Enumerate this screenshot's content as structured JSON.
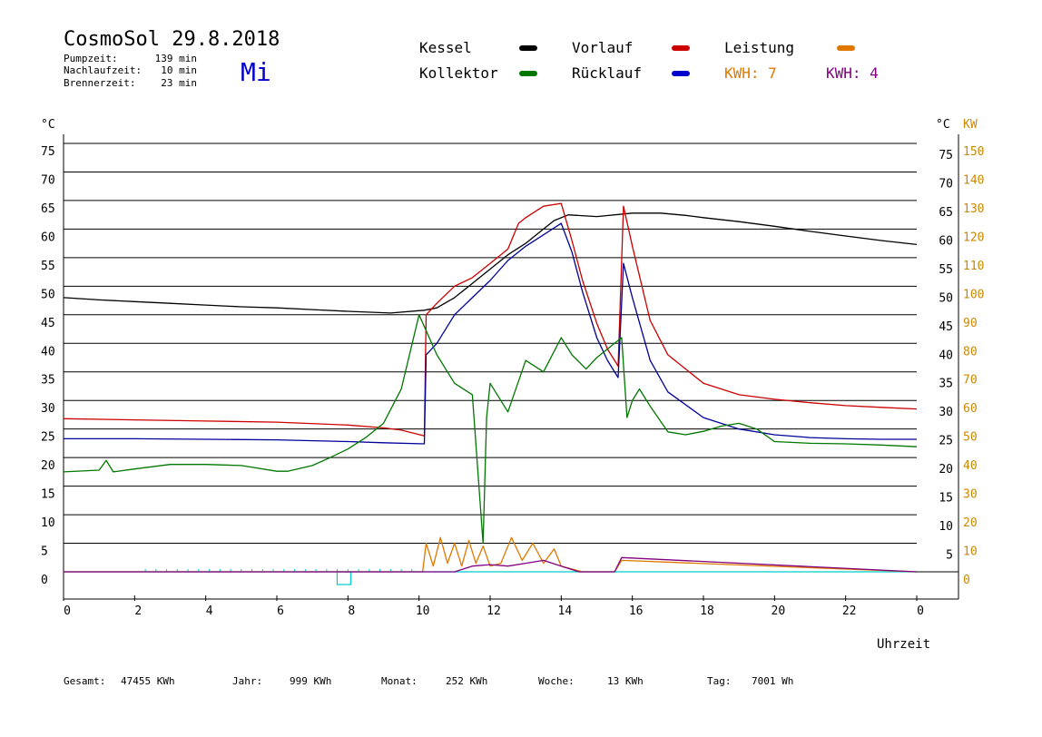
{
  "header": {
    "title": "CosmoSol 29.8.2018",
    "weekday": "Mi",
    "info": [
      {
        "label": "Pumpzeit:",
        "value": "139 min"
      },
      {
        "label": "Nachlaufzeit:",
        "value": "10 min"
      },
      {
        "label": "Brennerzeit:",
        "value": "23 min"
      }
    ]
  },
  "legend": {
    "kessel": "Kessel",
    "vorlauf": "Vorlauf",
    "leistung": "Leistung",
    "kollektor": "Kollektor",
    "ruecklauf": "Rücklauf",
    "kwh_a": "KWH: 7",
    "kwh_b": "KWH: 4"
  },
  "footer": [
    {
      "label": "Gesamt:",
      "value": "47455 KWh"
    },
    {
      "label": "Jahr:",
      "value": "999 KWh"
    },
    {
      "label": "Monat:",
      "value": "252 KWh"
    },
    {
      "label": "Woche:",
      "value": "13 KWh"
    },
    {
      "label": "Tag:",
      "value": "7001 Wh"
    }
  ],
  "colors": {
    "kessel": "#000000",
    "vorlauf": "#cc0000",
    "ruecklauf": "#000099",
    "kollektor": "#007700",
    "leistung": "#e07800",
    "kwh_b": "#800080",
    "baseline": "#00cccc",
    "axis_right": "#cc8800"
  },
  "chart_data": {
    "type": "line",
    "xlabel": "Uhrzeit",
    "ylabel_left": "°C",
    "ylabel_right_a": "°C",
    "ylabel_right_b": "KW",
    "xlim": [
      0,
      24
    ],
    "ylim": [
      0,
      75
    ],
    "y2lim": [
      0,
      150
    ],
    "x_ticks": [
      "0",
      "2",
      "4",
      "6",
      "8",
      "10",
      "12",
      "14",
      "16",
      "18",
      "20",
      "22",
      "0"
    ],
    "y_ticks": [
      "0",
      "5",
      "10",
      "15",
      "20",
      "25",
      "30",
      "35",
      "40",
      "45",
      "50",
      "55",
      "60",
      "65",
      "70",
      "75"
    ],
    "y2_ticks": [
      "0",
      "10",
      "20",
      "30",
      "40",
      "50",
      "60",
      "70",
      "80",
      "90",
      "100",
      "110",
      "120",
      "130",
      "140",
      "150"
    ],
    "grid": true,
    "series": [
      {
        "name": "Kessel",
        "key": "kessel",
        "x": [
          0,
          1,
          2,
          3,
          4,
          5,
          6,
          7,
          8,
          9.2,
          10.15,
          10.5,
          11,
          11.5,
          12,
          12.5,
          13,
          13.4,
          13.8,
          14.2,
          15,
          16,
          16.8,
          17.5,
          18,
          19,
          20,
          21,
          22,
          23,
          24
        ],
        "y": [
          48,
          47.6,
          47.3,
          47,
          46.7,
          46.4,
          46.2,
          45.9,
          45.6,
          45.3,
          45.8,
          46.2,
          48,
          50.5,
          53,
          55.5,
          57.5,
          59.5,
          61.5,
          62.5,
          62.2,
          62.8,
          62.8,
          62.4,
          62,
          61.3,
          60.5,
          59.6,
          58.8,
          58,
          57.3
        ]
      },
      {
        "name": "Vorlauf",
        "key": "vorlauf",
        "x": [
          0,
          2,
          4,
          6,
          8,
          9,
          9.5,
          10.15,
          10.2,
          10.5,
          11,
          11.5,
          12,
          12.5,
          12.8,
          13,
          13.5,
          14,
          14.3,
          14.6,
          15,
          15.3,
          15.6,
          15.75,
          16,
          16.5,
          17,
          18,
          19,
          20,
          21,
          22,
          23,
          24
        ],
        "y": [
          26.8,
          26.6,
          26.4,
          26.2,
          25.7,
          25.2,
          24.8,
          23.8,
          45,
          47,
          50,
          51.5,
          54,
          56.5,
          61,
          62,
          64,
          64.5,
          58,
          51,
          43.5,
          39,
          36,
          64,
          57,
          44,
          38,
          33,
          31,
          30.2,
          29.6,
          29.1,
          28.8,
          28.5
        ]
      },
      {
        "name": "Rücklauf",
        "key": "ruecklauf",
        "x": [
          0,
          2,
          4,
          6,
          8,
          9,
          10.15,
          10.2,
          10.5,
          11,
          11.5,
          12,
          12.5,
          13,
          13.5,
          14,
          14.3,
          14.6,
          15,
          15.3,
          15.6,
          15.75,
          16,
          16.5,
          17,
          18,
          19,
          20,
          21,
          22,
          23,
          24
        ],
        "y": [
          23.3,
          23.3,
          23.2,
          23.1,
          22.8,
          22.6,
          22.4,
          38,
          40,
          45,
          48,
          51,
          54.5,
          57,
          59,
          61,
          56,
          49,
          41,
          37,
          34,
          54,
          48,
          37,
          31.5,
          27,
          25,
          24,
          23.5,
          23.3,
          23.2,
          23.2
        ]
      },
      {
        "name": "Kollektor",
        "key": "kollektor",
        "x": [
          0,
          1,
          1.2,
          1.4,
          2,
          3,
          4,
          5,
          6,
          6.3,
          7,
          7.5,
          8,
          8.5,
          9,
          9.5,
          10,
          10.5,
          11,
          11.5,
          11.8,
          11.9,
          12,
          12.5,
          13,
          13.5,
          14,
          14.3,
          14.7,
          15,
          15.5,
          15.7,
          15.85,
          16,
          16.2,
          16.5,
          17,
          17.5,
          18,
          18.5,
          19,
          19.5,
          20,
          21,
          22,
          23,
          24
        ],
        "y": [
          17.5,
          17.8,
          19.5,
          17.5,
          18,
          18.8,
          18.8,
          18.6,
          17.6,
          17.6,
          18.6,
          20,
          21.5,
          23.5,
          26,
          32,
          45,
          38,
          33,
          31,
          5,
          27,
          33,
          28,
          37,
          35,
          41,
          38,
          35.5,
          37.5,
          40,
          41,
          27,
          30,
          32,
          29,
          24.5,
          24,
          24.6,
          25.5,
          26,
          25,
          22.8,
          22.5,
          22.4,
          22.2,
          21.9
        ]
      },
      {
        "name": "Leistung",
        "key": "leistung",
        "axis": "right",
        "x": [
          0,
          10.1,
          10.2,
          10.4,
          10.6,
          10.8,
          11,
          11.2,
          11.4,
          11.6,
          11.8,
          12,
          12.3,
          12.6,
          12.9,
          13.2,
          13.5,
          13.8,
          14,
          14.3,
          14.6,
          15.5,
          15.7,
          24
        ],
        "y": [
          0,
          0,
          10,
          2,
          12,
          3,
          10,
          2,
          11,
          3,
          9,
          2,
          3,
          12,
          4,
          10,
          3,
          8,
          2,
          1,
          0,
          0,
          4,
          0
        ]
      },
      {
        "name": "KWH: 4",
        "key": "kwh_b",
        "axis": "right",
        "x": [
          0,
          11,
          11.5,
          12,
          12.5,
          13,
          13.5,
          14,
          14.5,
          15.5,
          15.7,
          24
        ],
        "y": [
          0,
          0,
          2,
          2.5,
          2,
          3,
          4,
          2,
          0,
          0,
          5,
          0
        ]
      }
    ],
    "annotations": [
      {
        "type": "baseline",
        "y": 0,
        "from": 0,
        "to": 24
      },
      {
        "type": "marker",
        "x": 7.9,
        "y": 0,
        "shape": "square"
      }
    ]
  }
}
